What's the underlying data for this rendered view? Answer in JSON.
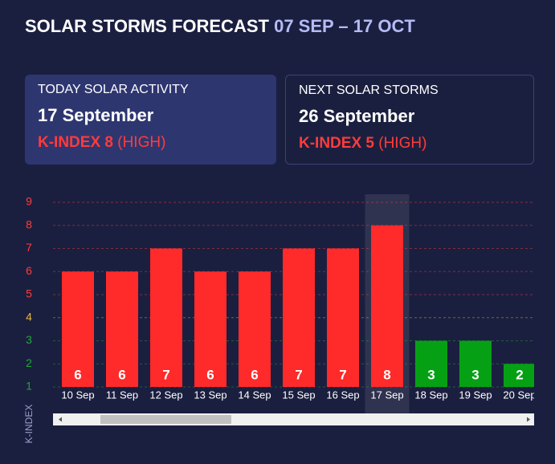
{
  "header": {
    "title": "SOLAR STORMS FORECAST",
    "range": "07 SEP – 17 OCT"
  },
  "cards": [
    {
      "label": "TODAY SOLAR ACTIVITY",
      "date": "17 September",
      "index": "K-INDEX 8",
      "level": "(HIGH)"
    },
    {
      "label": "NEXT SOLAR STORMS",
      "date": "26 September",
      "index": "K-INDEX 5",
      "level": "(HIGH)"
    }
  ],
  "chart_data": {
    "type": "bar",
    "y_label": "K-INDEX",
    "categories": [
      "10 Sep",
      "11 Sep",
      "12 Sep",
      "13 Sep",
      "14 Sep",
      "15 Sep",
      "16 Sep",
      "17 Sep",
      "18 Sep",
      "19 Sep",
      "20 Sep"
    ],
    "values": [
      6,
      6,
      7,
      6,
      6,
      7,
      7,
      8,
      3,
      3,
      2
    ],
    "bar_colors": [
      "#ff2a2a",
      "#ff2a2a",
      "#ff2a2a",
      "#ff2a2a",
      "#ff2a2a",
      "#ff2a2a",
      "#ff2a2a",
      "#ff2a2a",
      "#06a014",
      "#06a014",
      "#06a014"
    ],
    "ylim": [
      1,
      9
    ],
    "yticks": [
      1,
      2,
      3,
      4,
      5,
      6,
      7,
      8,
      9
    ],
    "ytick_colors": [
      "#1fa83a",
      "#1fa83a",
      "#1fa83a",
      "#e8b83a",
      "#ff3b3b",
      "#ff3b3b",
      "#ff3b3b",
      "#ff3b3b",
      "#ff3b3b"
    ],
    "highlight_index": 7,
    "grid": true
  }
}
